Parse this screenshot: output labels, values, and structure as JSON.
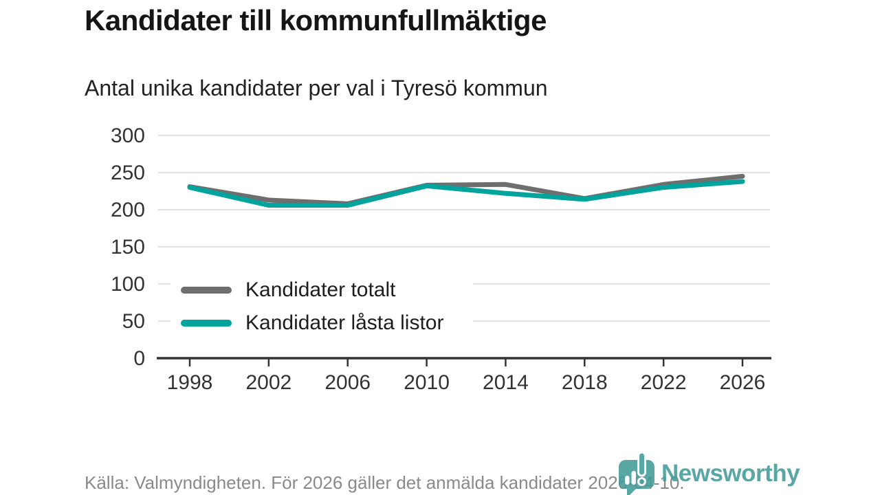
{
  "header": {
    "title": "Kandidater till kommunfullmäktige",
    "subtitle": "Antal unika kandidater per val i Tyresö kommun"
  },
  "chart_data": {
    "type": "line",
    "x": [
      1998,
      2002,
      2006,
      2010,
      2014,
      2018,
      2022,
      2026
    ],
    "series": [
      {
        "name": "Kandidater totalt",
        "color": "#6e6e6e",
        "values": [
          231,
          213,
          208,
          233,
          234,
          215,
          234,
          245
        ]
      },
      {
        "name": "Kandidater låsta listor",
        "color": "#00a49c",
        "values": [
          230,
          206,
          206,
          232,
          222,
          214,
          230,
          238
        ]
      }
    ],
    "title": "Kandidater till kommunfullmäktige",
    "subtitle": "Antal unika kandidater per val i Tyresö kommun",
    "xlabel": "",
    "ylabel": "",
    "ylim": [
      0,
      300
    ],
    "y_ticks": [
      0,
      50,
      100,
      150,
      200,
      250,
      300
    ],
    "grid": "horizontal",
    "gridline_color": "#e2e2e2",
    "axis_color": "#333333",
    "tick_label_color": "#333333",
    "legend_position": "inside-left-middle"
  },
  "footer": {
    "source": "Källa: Valmyndigheten. För 2026 gäller det anmälda kandidater 2026-04-10.",
    "brand_name": "Newsworthy",
    "brand_color": "#429c98"
  }
}
